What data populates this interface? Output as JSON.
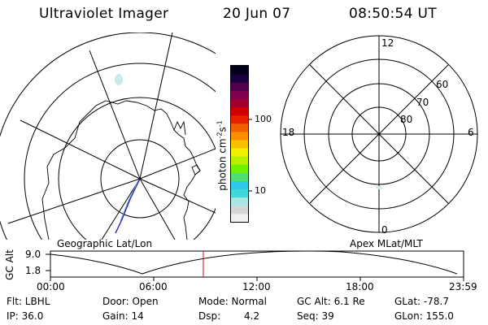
{
  "header": {
    "title": "Ultraviolet Imager",
    "date": "20 Jun 07",
    "time": "08:50:54 UT"
  },
  "geo_panel": {
    "label": "Geographic Lat/Lon"
  },
  "colorbar": {
    "unit": "photon cm",
    "unit_exp1": "-2",
    "unit_mid": "s",
    "unit_exp2": "-1",
    "ticks": [
      "100",
      "10"
    ]
  },
  "polar_panel": {
    "label": "Apex MLat/MLT",
    "mlt_labels": {
      "top": "12",
      "left": "18",
      "right": "6",
      "bottom": "0"
    },
    "mlat_labels": [
      "60",
      "70",
      "80"
    ]
  },
  "timeline": {
    "ylabel": "GC Alt",
    "yticks": [
      "9.0",
      "1.8"
    ],
    "xticks": [
      "00:00",
      "06:00",
      "12:00",
      "18:00",
      "23:59"
    ],
    "current_fraction": 0.37,
    "line_color": "#000000",
    "marker_color": "#dd0000"
  },
  "info": {
    "flt": "Flt: LBHL",
    "ip": "IP: 36.0",
    "door": "Door: Open",
    "gain": "Gain: 14",
    "mode": "Mode: Normal",
    "dsp_label": "Dsp:",
    "dsp_value": "4.2",
    "gcalt": "GC Alt: 6.1 Re",
    "seq": "Seq: 39",
    "glat": "GLat: -78.7",
    "glon": "GLon: 155.0"
  },
  "colors": {
    "colorbar": [
      "#f0f0f0",
      "#d6d6d6",
      "#a8e6e6",
      "#40d8d8",
      "#30c8e8",
      "#50e070",
      "#70f000",
      "#b8f000",
      "#f0f000",
      "#f8c000",
      "#f89000",
      "#f06000",
      "#e82000",
      "#d00000",
      "#a00030",
      "#800050",
      "#50004a",
      "#1a0040",
      "#000018"
    ],
    "aurora": "#c8ecec",
    "track": "#1a1aa0"
  }
}
